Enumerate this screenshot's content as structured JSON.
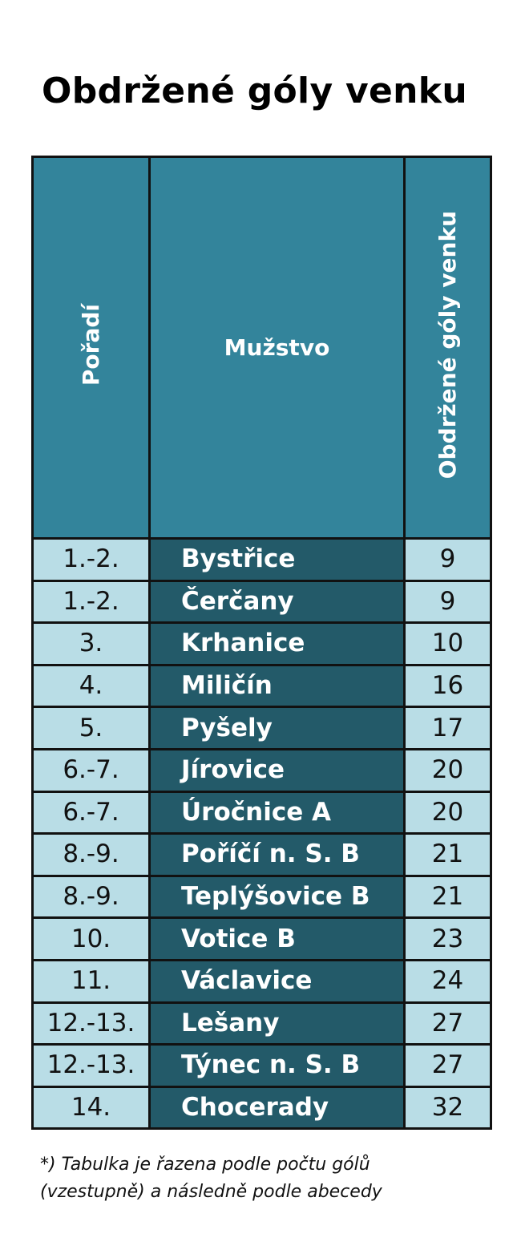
{
  "title": "Obdržené góly venku",
  "table": {
    "headers": {
      "rank": "Pořadí",
      "team": "Mužstvo",
      "goals": "Obdržené góly venku"
    },
    "rows": [
      {
        "rank": "1.-2.",
        "team": "Bystřice",
        "goals": "9"
      },
      {
        "rank": "1.-2.",
        "team": "Čerčany",
        "goals": "9"
      },
      {
        "rank": "3.",
        "team": "Krhanice",
        "goals": "10"
      },
      {
        "rank": "4.",
        "team": "Miličín",
        "goals": "16"
      },
      {
        "rank": "5.",
        "team": "Pyšely",
        "goals": "17"
      },
      {
        "rank": "6.-7.",
        "team": "Jírovice",
        "goals": "20"
      },
      {
        "rank": "6.-7.",
        "team": "Úročnice A",
        "goals": "20"
      },
      {
        "rank": "8.-9.",
        "team": "Poříčí n. S. B",
        "goals": "21"
      },
      {
        "rank": "8.-9.",
        "team": "Teplýšovice B",
        "goals": "21"
      },
      {
        "rank": "10.",
        "team": "Votice B",
        "goals": "23"
      },
      {
        "rank": "11.",
        "team": "Václavice",
        "goals": "24"
      },
      {
        "rank": "12.-13.",
        "team": "Lešany",
        "goals": "27"
      },
      {
        "rank": "12.-13.",
        "team": "Týnec n. S. B",
        "goals": "27"
      },
      {
        "rank": "14.",
        "team": "Chocerady",
        "goals": "32"
      }
    ]
  },
  "footnote": {
    "line1": "*) Tabulka je řazena podle počtu gólů",
    "line2": "(vzestupně) a následně podle abecedy"
  },
  "colors": {
    "header_bg": "#33849b",
    "team_bg": "#235a69",
    "cell_bg": "#b9dde6",
    "border": "#111111"
  }
}
